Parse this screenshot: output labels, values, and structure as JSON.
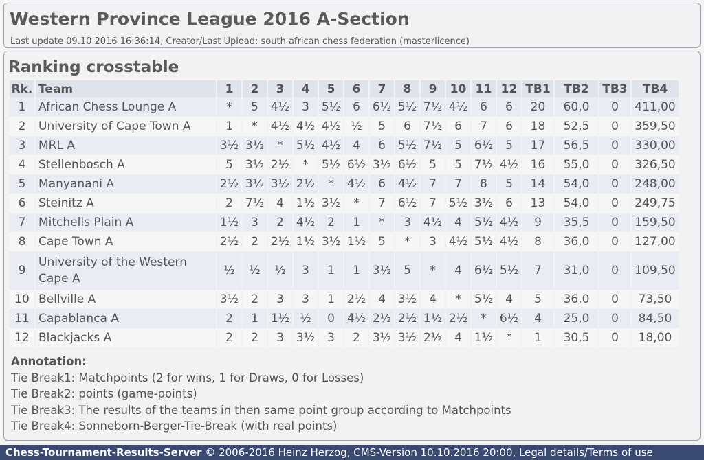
{
  "header": {
    "title": "Western Province League 2016 A-Section",
    "subtitle": "Last update 09.10.2016 16:36:14, Creator/Last Upload: south african chess federation (masterlicence)"
  },
  "section_title": "Ranking crosstable",
  "columns": [
    "Rk.",
    "Team",
    "1",
    "2",
    "3",
    "4",
    "5",
    "6",
    "7",
    "8",
    "9",
    "10",
    "11",
    "12",
    "TB1",
    "TB2",
    "TB3",
    "TB4"
  ],
  "rows": [
    [
      "1",
      "African Chess Lounge A",
      "*",
      "5",
      "4½",
      "3",
      "5½",
      "6",
      "6½",
      "5½",
      "7½",
      "4½",
      "6",
      "6",
      "20",
      "60,0",
      "0",
      "411,00"
    ],
    [
      "2",
      "University of Cape Town A",
      "1",
      "*",
      "4½",
      "4½",
      "4½",
      "½",
      "5",
      "6",
      "7½",
      "6",
      "7",
      "6",
      "18",
      "52,5",
      "0",
      "359,50"
    ],
    [
      "3",
      "MRL A",
      "3½",
      "3½",
      "*",
      "5½",
      "4½",
      "4",
      "6",
      "5½",
      "7½",
      "5",
      "6½",
      "5",
      "17",
      "56,5",
      "0",
      "330,00"
    ],
    [
      "4",
      "Stellenbosch A",
      "5",
      "3½",
      "2½",
      "*",
      "5½",
      "6½",
      "3½",
      "6½",
      "5",
      "5",
      "7½",
      "4½",
      "16",
      "55,0",
      "0",
      "326,50"
    ],
    [
      "5",
      "Manyanani A",
      "2½",
      "3½",
      "3½",
      "2½",
      "*",
      "4½",
      "6",
      "4½",
      "7",
      "7",
      "8",
      "5",
      "14",
      "54,0",
      "0",
      "248,00"
    ],
    [
      "6",
      "Steinitz A",
      "2",
      "7½",
      "4",
      "1½",
      "3½",
      "*",
      "7",
      "6½",
      "7",
      "5½",
      "3½",
      "6",
      "13",
      "54,0",
      "0",
      "249,75"
    ],
    [
      "7",
      "Mitchells Plain A",
      "1½",
      "3",
      "2",
      "4½",
      "2",
      "1",
      "*",
      "3",
      "4½",
      "4",
      "5½",
      "4½",
      "9",
      "35,5",
      "0",
      "159,50"
    ],
    [
      "8",
      "Cape Town A",
      "2½",
      "2",
      "2½",
      "1½",
      "3½",
      "1½",
      "5",
      "*",
      "3",
      "4½",
      "5½",
      "4½",
      "8",
      "36,0",
      "0",
      "127,00"
    ],
    [
      "9",
      "University of the Western Cape A",
      "½",
      "½",
      "½",
      "3",
      "1",
      "1",
      "3½",
      "5",
      "*",
      "4",
      "6½",
      "5½",
      "7",
      "31,0",
      "0",
      "109,50"
    ],
    [
      "10",
      "Bellville A",
      "3½",
      "2",
      "3",
      "3",
      "1",
      "2½",
      "4",
      "3½",
      "4",
      "*",
      "5½",
      "4",
      "5",
      "36,0",
      "0",
      "73,50"
    ],
    [
      "11",
      "Capablanca A",
      "2",
      "1",
      "1½",
      "½",
      "0",
      "4½",
      "2½",
      "2½",
      "1½",
      "2½",
      "*",
      "6½",
      "4",
      "25,0",
      "0",
      "84,50"
    ],
    [
      "12",
      "Blackjacks A",
      "2",
      "2",
      "3",
      "3½",
      "3",
      "2",
      "3½",
      "3½",
      "2½",
      "4",
      "1½",
      "*",
      "1",
      "30,5",
      "0",
      "18,00"
    ]
  ],
  "annotation": {
    "title": "Annotation:",
    "lines": [
      "Tie Break1: Matchpoints (2 for wins, 1 for Draws, 0 for Losses)",
      "Tie Break2: points (game-points)",
      "Tie Break3: The results of the teams in then same point group according to Matchpoints",
      "Tie Break4: Sonneborn-Berger-Tie-Break (with real points)"
    ]
  },
  "footer": {
    "brand": "Chess-Tournament-Results-Server",
    "copyright": " © 2006-2016 Heinz Herzog, CMS-Version 10.10.2016 20:00, ",
    "legal": "Legal details/Terms of use"
  }
}
